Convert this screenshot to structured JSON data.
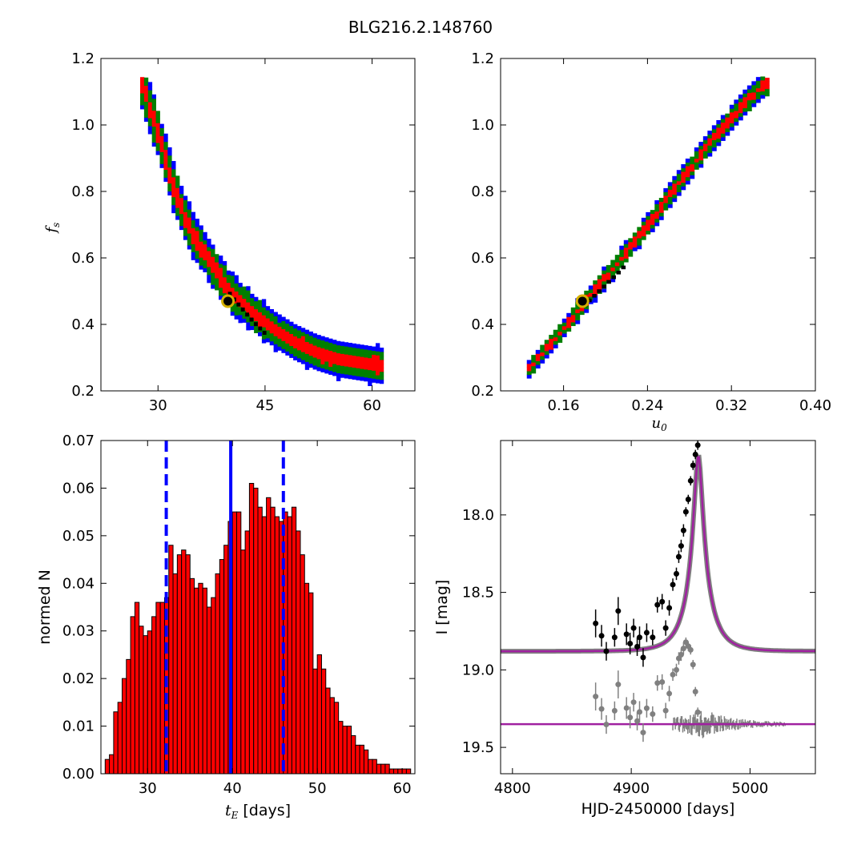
{
  "figure": {
    "title": "BLG216.2.148760"
  },
  "chart_data": [
    {
      "type": "heatmap",
      "panel": "tE-fs",
      "xlabel": "",
      "ylabel_main": "f",
      "ylabel_sub": "s",
      "xlim": [
        22,
        66
      ],
      "ylim": [
        0.2,
        1.2
      ],
      "xticks": [
        {
          "v": 30,
          "label": "30"
        },
        {
          "v": 45,
          "label": "45"
        },
        {
          "v": 60,
          "label": "60"
        }
      ],
      "yticks": [
        {
          "v": 0.2,
          "label": "0.2"
        },
        {
          "v": 0.4,
          "label": "0.4"
        },
        {
          "v": 0.6,
          "label": "0.6"
        },
        {
          "v": 0.8,
          "label": "0.8"
        },
        {
          "v": 1.0,
          "label": "1.0"
        },
        {
          "v": 1.2,
          "label": "1.2"
        }
      ],
      "levels": [
        "3-sigma (blue)",
        "2-sigma (green)",
        "1-sigma (red)",
        "best chain (black)"
      ],
      "colors": {
        "blue": "#0000ff",
        "green": "#007f00",
        "red": "#ff0000",
        "black": "#000000"
      },
      "ridge": [
        [
          27.5,
          1.12
        ],
        [
          30,
          0.95
        ],
        [
          32,
          0.8
        ],
        [
          34,
          0.69
        ],
        [
          37,
          0.58
        ],
        [
          40,
          0.49
        ],
        [
          43,
          0.43
        ],
        [
          46,
          0.38
        ],
        [
          49,
          0.34
        ],
        [
          52,
          0.31
        ],
        [
          55,
          0.29
        ],
        [
          58,
          0.28
        ],
        [
          61,
          0.27
        ]
      ],
      "best_fit": {
        "x": 39.8,
        "y": 0.47
      }
    },
    {
      "type": "heatmap",
      "panel": "u0-fs",
      "xlabel_main": "u",
      "xlabel_sub": "0",
      "ylabel": "",
      "xlim": [
        0.1,
        0.4
      ],
      "ylim": [
        0.2,
        1.2
      ],
      "xticks": [
        {
          "v": 0.16,
          "label": "0.16"
        },
        {
          "v": 0.24,
          "label": "0.24"
        },
        {
          "v": 0.32,
          "label": "0.32"
        },
        {
          "v": 0.4,
          "label": "0.40"
        }
      ],
      "yticks": [
        {
          "v": 0.2,
          "label": "0.2"
        },
        {
          "v": 0.4,
          "label": "0.4"
        },
        {
          "v": 0.6,
          "label": "0.6"
        },
        {
          "v": 0.8,
          "label": "0.8"
        },
        {
          "v": 1.0,
          "label": "1.0"
        },
        {
          "v": 1.2,
          "label": "1.2"
        }
      ],
      "ridge": [
        [
          0.125,
          0.26
        ],
        [
          0.15,
          0.35
        ],
        [
          0.18,
          0.47
        ],
        [
          0.21,
          0.58
        ],
        [
          0.24,
          0.7
        ],
        [
          0.27,
          0.83
        ],
        [
          0.3,
          0.95
        ],
        [
          0.33,
          1.06
        ],
        [
          0.35,
          1.12
        ]
      ],
      "best_fit": {
        "x": 0.178,
        "y": 0.47
      }
    },
    {
      "type": "bar",
      "panel": "tE-histogram",
      "xlabel_main": "t",
      "xlabel_sub": "E",
      "xlabel_rest": " [days]",
      "ylabel": "normed N",
      "xlim": [
        24.5,
        61.5
      ],
      "ylim": [
        0,
        0.07
      ],
      "bin_start": 25.0,
      "bin_width": 0.5,
      "values": [
        0.003,
        0.004,
        0.013,
        0.015,
        0.02,
        0.024,
        0.033,
        0.036,
        0.031,
        0.029,
        0.03,
        0.033,
        0.036,
        0.036,
        0.037,
        0.048,
        0.042,
        0.046,
        0.047,
        0.046,
        0.041,
        0.039,
        0.04,
        0.039,
        0.035,
        0.037,
        0.042,
        0.045,
        0.048,
        0.053,
        0.055,
        0.055,
        0.047,
        0.051,
        0.061,
        0.06,
        0.056,
        0.054,
        0.058,
        0.056,
        0.054,
        0.053,
        0.055,
        0.054,
        0.056,
        0.051,
        0.046,
        0.04,
        0.038,
        0.022,
        0.025,
        0.022,
        0.018,
        0.016,
        0.015,
        0.011,
        0.01,
        0.01,
        0.008,
        0.006,
        0.006,
        0.005,
        0.003,
        0.003,
        0.002,
        0.002,
        0.002,
        0.001,
        0.001,
        0.001,
        0.001,
        0.001
      ],
      "bar_color": "#ff0000",
      "median_line": 39.8,
      "interval_lines": [
        32.2,
        46.0
      ],
      "line_color": "#0000ff",
      "xticks": [
        {
          "v": 30,
          "label": "30"
        },
        {
          "v": 40,
          "label": "40"
        },
        {
          "v": 50,
          "label": "50"
        },
        {
          "v": 60,
          "label": "60"
        }
      ],
      "yticks": [
        {
          "v": 0.0,
          "label": "0.00"
        },
        {
          "v": 0.01,
          "label": "0.01"
        },
        {
          "v": 0.02,
          "label": "0.02"
        },
        {
          "v": 0.03,
          "label": "0.03"
        },
        {
          "v": 0.04,
          "label": "0.04"
        },
        {
          "v": 0.05,
          "label": "0.05"
        },
        {
          "v": 0.06,
          "label": "0.06"
        },
        {
          "v": 0.07,
          "label": "0.07"
        }
      ]
    },
    {
      "type": "scatter",
      "panel": "light-curve",
      "xlabel": "HJD-2450000 [days]",
      "ylabel": "I [mag]",
      "xlim": [
        4790,
        5055
      ],
      "ylim_inverted": [
        19.67,
        17.52
      ],
      "xticks": [
        {
          "v": 4800,
          "label": "4800"
        },
        {
          "v": 4900,
          "label": "4900"
        },
        {
          "v": 5000,
          "label": "5000"
        }
      ],
      "yticks": [
        {
          "v": 18.0,
          "label": "18.0"
        },
        {
          "v": 18.5,
          "label": "18.5"
        },
        {
          "v": 19.0,
          "label": "19.0"
        },
        {
          "v": 19.5,
          "label": "19.5"
        }
      ],
      "model": {
        "t0": 4956.5,
        "tE": 39.8,
        "u0": 0.178,
        "base_mag": 18.88,
        "color": "#a020a0",
        "band_color": "#808080"
      },
      "residual_offset": 19.35,
      "data_color": "#000000",
      "residual_color": "#808080",
      "points": [
        {
          "t": 4870,
          "mag": 18.7,
          "err": 0.09
        },
        {
          "t": 4875,
          "mag": 18.78,
          "err": 0.07
        },
        {
          "t": 4879,
          "mag": 18.88,
          "err": 0.06
        },
        {
          "t": 4886,
          "mag": 18.79,
          "err": 0.06
        },
        {
          "t": 4889,
          "mag": 18.62,
          "err": 0.09
        },
        {
          "t": 4896,
          "mag": 18.77,
          "err": 0.07
        },
        {
          "t": 4899,
          "mag": 18.83,
          "err": 0.07
        },
        {
          "t": 4902,
          "mag": 18.73,
          "err": 0.06
        },
        {
          "t": 4905,
          "mag": 18.85,
          "err": 0.06
        },
        {
          "t": 4907,
          "mag": 18.79,
          "err": 0.07
        },
        {
          "t": 4910,
          "mag": 18.92,
          "err": 0.06
        },
        {
          "t": 4913,
          "mag": 18.76,
          "err": 0.06
        },
        {
          "t": 4918,
          "mag": 18.79,
          "err": 0.05
        },
        {
          "t": 4922,
          "mag": 18.58,
          "err": 0.05
        },
        {
          "t": 4926,
          "mag": 18.56,
          "err": 0.05
        },
        {
          "t": 4929,
          "mag": 18.73,
          "err": 0.05
        },
        {
          "t": 4932,
          "mag": 18.6,
          "err": 0.05
        },
        {
          "t": 4935,
          "mag": 18.45,
          "err": 0.04
        },
        {
          "t": 4938,
          "mag": 18.38,
          "err": 0.04
        },
        {
          "t": 4940,
          "mag": 18.27,
          "err": 0.04
        },
        {
          "t": 4942,
          "mag": 18.2,
          "err": 0.04
        },
        {
          "t": 4944,
          "mag": 18.1,
          "err": 0.04
        },
        {
          "t": 4946,
          "mag": 17.98,
          "err": 0.03
        },
        {
          "t": 4948,
          "mag": 17.9,
          "err": 0.03
        },
        {
          "t": 4950,
          "mag": 17.78,
          "err": 0.03
        },
        {
          "t": 4952,
          "mag": 17.68,
          "err": 0.03
        },
        {
          "t": 4954,
          "mag": 17.61,
          "err": 0.03
        },
        {
          "t": 4956,
          "mag": 17.55,
          "err": 0.03
        }
      ]
    }
  ]
}
